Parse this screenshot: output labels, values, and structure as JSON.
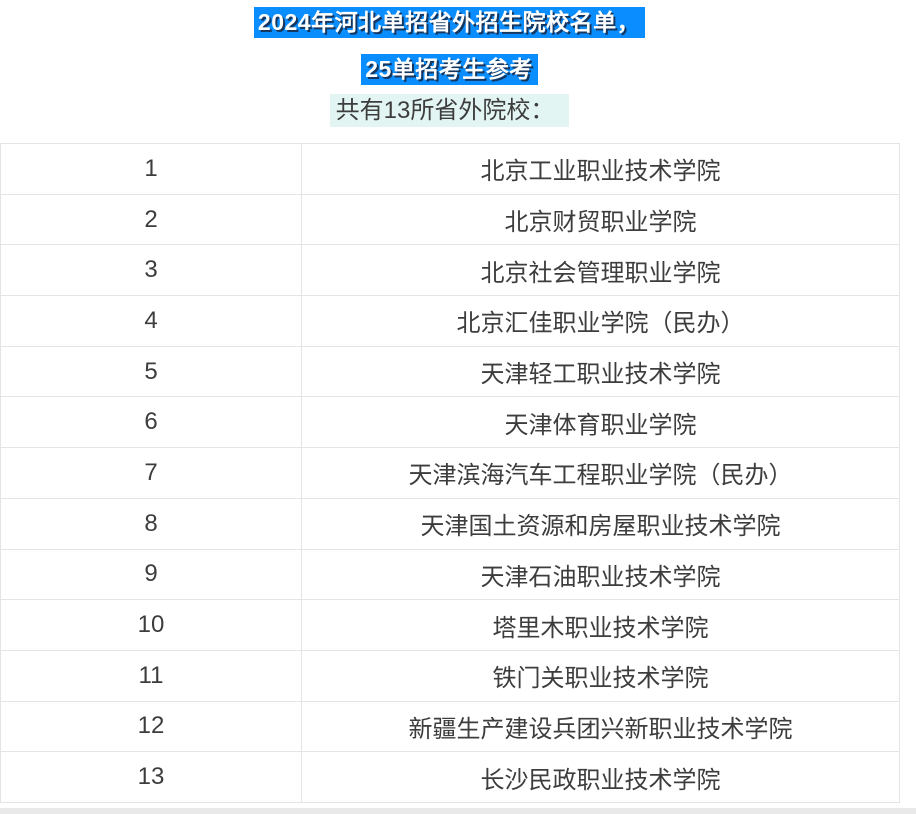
{
  "header": {
    "title_line1": "2024年河北单招省外招生院校名单，",
    "title_line2": "25单招考生参考",
    "subtitle": "共有13所省外院校："
  },
  "table": {
    "rows": [
      {
        "index": "1",
        "name": "北京工业职业技术学院"
      },
      {
        "index": "2",
        "name": "北京财贸职业学院"
      },
      {
        "index": "3",
        "name": "北京社会管理职业学院"
      },
      {
        "index": "4",
        "name": "北京汇佳职业学院（民办）"
      },
      {
        "index": "5",
        "name": "天津轻工职业技术学院"
      },
      {
        "index": "6",
        "name": "天津体育职业学院"
      },
      {
        "index": "7",
        "name": "天津滨海汽车工程职业学院（民办）"
      },
      {
        "index": "8",
        "name": "天津国土资源和房屋职业技术学院"
      },
      {
        "index": "9",
        "name": "天津石油职业技术学院"
      },
      {
        "index": "10",
        "name": "塔里木职业技术学院"
      },
      {
        "index": "11",
        "name": "铁门关职业技术学院"
      },
      {
        "index": "12",
        "name": "新疆生产建设兵团兴新职业技术学院"
      },
      {
        "index": "13",
        "name": "长沙民政职业技术学院"
      }
    ]
  },
  "colors": {
    "title_highlight": "#0a8eff",
    "title_text": "#ffffff",
    "title_shadow": "#16375f",
    "subtitle_highlight": "#e2f5f2",
    "body_text": "#3d3d3d",
    "table_border": "#e4e4e4",
    "bottom_strip": "#e9e9e9"
  }
}
